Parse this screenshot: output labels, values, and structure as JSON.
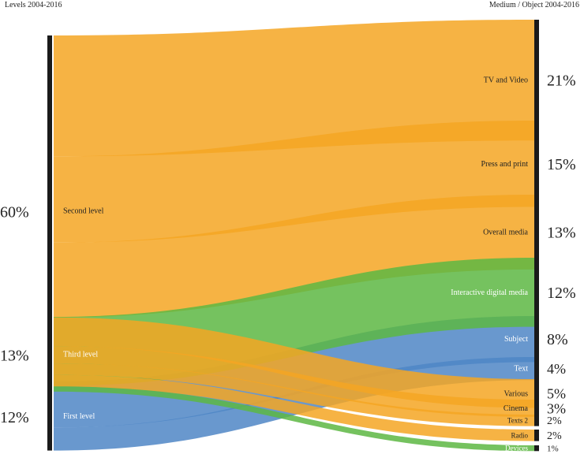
{
  "headers": {
    "left": "Levels 2004-2016",
    "right": "Medium / Object 2004-2016"
  },
  "colors": {
    "orange": "#F5A623",
    "green": "#5DB743",
    "blue": "#4F86C6",
    "bar": "#1a1a1a"
  },
  "chart_data": {
    "type": "sankey",
    "title": "",
    "sources": [
      {
        "name": "Second level",
        "percent_label": "60%",
        "color": "orange"
      },
      {
        "name": "Third level",
        "percent_label": "13%",
        "color": "green"
      },
      {
        "name": "First level",
        "percent_label": "12%",
        "color": "blue"
      }
    ],
    "targets": [
      {
        "name": "TV and Video",
        "percent_label": "21%"
      },
      {
        "name": "Press and print",
        "percent_label": "15%"
      },
      {
        "name": "Overall media",
        "percent_label": "13%"
      },
      {
        "name": "Interactive digital media",
        "percent_label": "12%"
      },
      {
        "name": "Subject",
        "percent_label": "8%"
      },
      {
        "name": "Text",
        "percent_label": "4%"
      },
      {
        "name": "Various",
        "percent_label": "5%"
      },
      {
        "name": "Cinema",
        "percent_label": "3%"
      },
      {
        "name": "Texts 2",
        "percent_label": "2%"
      },
      {
        "name": "Radio",
        "percent_label": "2%"
      },
      {
        "name": "Devices",
        "percent_label": "1%"
      }
    ],
    "links": [
      {
        "source": "Second level",
        "target": "TV and Video",
        "value": 21
      },
      {
        "source": "Second level",
        "target": "Press and print",
        "value": 15
      },
      {
        "source": "Second level",
        "target": "Overall media",
        "value": 13
      },
      {
        "source": "Second level",
        "target": "Various",
        "value": 5
      },
      {
        "source": "Second level",
        "target": "Cinema",
        "value": 3
      },
      {
        "source": "Second level",
        "target": "Texts 2",
        "value": 2
      },
      {
        "source": "Second level",
        "target": "Radio",
        "value": 2
      },
      {
        "source": "Third level",
        "target": "Interactive digital media",
        "value": 12
      },
      {
        "source": "Third level",
        "target": "Devices",
        "value": 1
      },
      {
        "source": "First level",
        "target": "Subject",
        "value": 8
      },
      {
        "source": "First level",
        "target": "Text",
        "value": 4
      }
    ]
  }
}
